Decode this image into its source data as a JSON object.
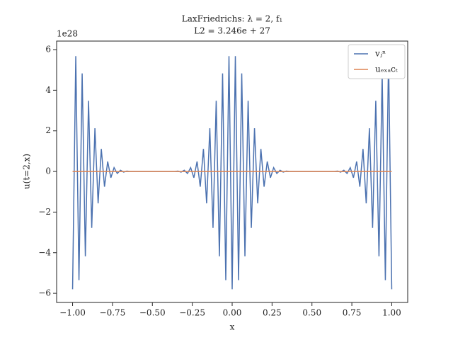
{
  "chart_data": {
    "type": "line",
    "title": "LaxFriedrichs: λ = 2, f₁",
    "subtitle": "L2 = 3.246e + 27",
    "x_label": "x",
    "y_label": "u(t=2,x)",
    "y_offset_label": "1e28",
    "xlim": [
      -1.1,
      1.1
    ],
    "ylim": [
      -6.45,
      6.42
    ],
    "xticks": [
      {
        "value": -1,
        "label": "−1.00"
      },
      {
        "value": -0.75,
        "label": "−0.75"
      },
      {
        "value": -0.5,
        "label": "−0.50"
      },
      {
        "value": -0.25,
        "label": "−0.25"
      },
      {
        "value": 0,
        "label": "0.00"
      },
      {
        "value": 0.25,
        "label": "0.25"
      },
      {
        "value": 0.5,
        "label": "0.50"
      },
      {
        "value": 0.75,
        "label": "0.75"
      },
      {
        "value": 1,
        "label": "1.00"
      }
    ],
    "yticks": [
      {
        "value": -6,
        "label": "−6"
      },
      {
        "value": -4,
        "label": "−4"
      },
      {
        "value": -2,
        "label": "−2"
      },
      0,
      2,
      4,
      6
    ],
    "legend": "upper right",
    "series": [
      {
        "name": "vⱼⁿ",
        "color": "#4c72b0",
        "x": [
          -1,
          -0.98,
          -0.96,
          -0.94,
          -0.92,
          -0.9,
          -0.88,
          -0.86,
          -0.84,
          -0.82,
          -0.8,
          -0.78,
          -0.76,
          -0.74,
          -0.72,
          -0.7,
          -0.68,
          -0.66,
          -0.64,
          -0.62,
          -0.6,
          -0.58,
          -0.56,
          -0.54,
          -0.52,
          -0.5,
          -0.48,
          -0.46,
          -0.44,
          -0.42,
          -0.4,
          -0.38,
          -0.36,
          -0.34,
          -0.32,
          -0.3,
          -0.28,
          -0.26,
          -0.24,
          -0.22,
          -0.2,
          -0.18,
          -0.16,
          -0.14,
          -0.12,
          -0.1,
          -0.08,
          -0.06,
          -0.04,
          -0.02,
          0,
          0.02,
          0.04,
          0.06,
          0.08,
          0.1,
          0.12,
          0.14,
          0.16,
          0.18,
          0.2,
          0.22,
          0.24,
          0.26,
          0.28,
          0.3,
          0.32,
          0.34,
          0.36,
          0.38,
          0.4,
          0.42,
          0.44,
          0.46,
          0.48,
          0.5,
          0.52,
          0.54,
          0.56,
          0.58,
          0.6,
          0.62,
          0.64,
          0.66,
          0.68,
          0.7,
          0.72,
          0.74,
          0.76,
          0.78,
          0.8,
          0.82,
          0.84,
          0.86,
          0.88,
          0.9,
          0.92,
          0.94,
          0.96,
          0.98,
          1
        ],
        "values": [
          -5.8,
          5.68,
          -5.35,
          4.83,
          -4.18,
          3.48,
          -2.78,
          2.13,
          -1.57,
          1.11,
          -0.75,
          0.49,
          -0.31,
          0.19,
          -0.1,
          0.06,
          -0.03,
          0.02,
          0,
          0,
          0,
          0,
          0,
          0,
          0,
          0,
          0,
          0,
          0,
          0,
          0,
          0,
          0,
          0.02,
          -0.03,
          0.06,
          -0.1,
          0.19,
          -0.31,
          0.49,
          -0.75,
          1.11,
          -1.57,
          2.13,
          -2.78,
          3.48,
          -4.18,
          4.83,
          -5.35,
          5.68,
          -5.8,
          5.68,
          -5.35,
          4.83,
          -4.18,
          3.48,
          -2.78,
          2.13,
          -1.57,
          1.11,
          -0.75,
          0.49,
          -0.31,
          0.19,
          -0.1,
          0.06,
          -0.03,
          0.02,
          0,
          0,
          0,
          0,
          0,
          0,
          0,
          0,
          0,
          0,
          0,
          0,
          0,
          0,
          0,
          0.02,
          -0.03,
          0.06,
          -0.1,
          0.19,
          -0.31,
          0.49,
          -0.75,
          1.11,
          -1.57,
          2.13,
          -2.78,
          3.48,
          -4.18,
          4.83,
          -5.35,
          5.68,
          -5.8
        ]
      },
      {
        "name": "uₑₓₐcₜ",
        "color": "#dd8452",
        "x": [
          -1,
          1
        ],
        "values": [
          0,
          0
        ]
      }
    ]
  }
}
